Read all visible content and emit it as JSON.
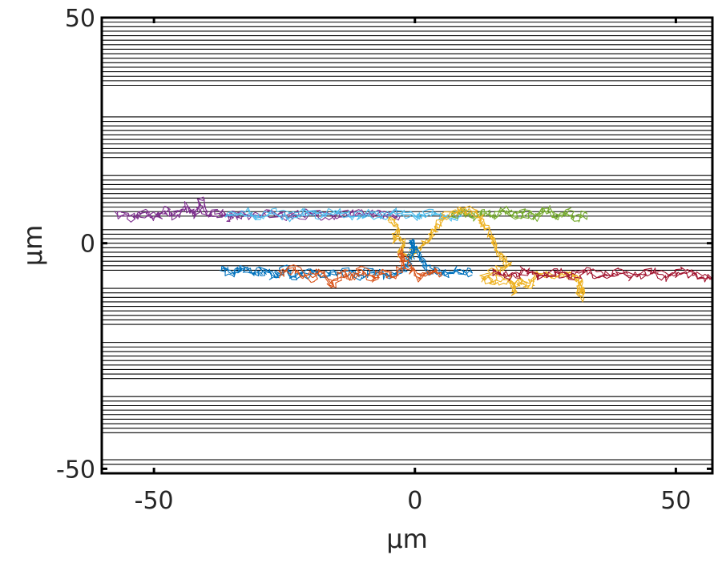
{
  "chart_data": {
    "type": "line",
    "title": "",
    "xlabel": "μm",
    "ylabel": "μm",
    "xlim": [
      -60,
      57
    ],
    "ylim": [
      -51,
      50
    ],
    "xticks": [
      -50,
      0,
      50
    ],
    "yticks": [
      -50,
      0,
      50
    ],
    "grid": false,
    "legend": "none",
    "horizontal_lines_y": [
      49,
      48,
      47,
      46,
      45,
      44,
      43,
      42,
      41,
      40,
      39,
      38,
      37,
      36,
      35,
      28,
      27,
      26,
      25,
      24,
      23,
      22,
      21,
      20,
      19,
      15,
      14,
      13,
      12,
      11,
      10,
      9,
      8,
      7,
      6,
      3,
      2,
      1,
      0,
      -1,
      -2,
      -3,
      -4,
      -5,
      -6,
      -10,
      -11,
      -12,
      -13,
      -14,
      -15,
      -16,
      -17,
      -18,
      -22,
      -23,
      -24,
      -25,
      -26,
      -27,
      -28,
      -29,
      -30,
      -34,
      -35,
      -36,
      -37,
      -38,
      -39,
      -40,
      -41,
      -42,
      -48,
      -49
    ],
    "series": [
      {
        "color": "#7E2F8E",
        "points": [
          [
            -57,
            6.5
          ],
          [
            -54,
            5.8
          ],
          [
            -52,
            6.6
          ],
          [
            -50,
            5.9
          ],
          [
            -48,
            7.2
          ],
          [
            -46,
            6.1
          ],
          [
            -44,
            8.2
          ],
          [
            -42,
            6.3
          ],
          [
            -41,
            9.6
          ],
          [
            -40,
            6.2
          ],
          [
            -38,
            6.8
          ],
          [
            -36,
            5.9
          ],
          [
            -34,
            6.5
          ],
          [
            -31,
            6.0
          ],
          [
            -28,
            6.7
          ],
          [
            -24,
            6.1
          ],
          [
            -20,
            6.6
          ],
          [
            -16,
            6.0
          ],
          [
            -12,
            6.7
          ],
          [
            -8,
            6.1
          ],
          [
            -5,
            6.5
          ],
          [
            -3,
            6.2
          ]
        ]
      },
      {
        "color": "#4DBEEE",
        "points": [
          [
            -36,
            6.2
          ],
          [
            -33,
            6.9
          ],
          [
            -30,
            5.8
          ],
          [
            -27,
            6.8
          ],
          [
            -24,
            5.9
          ],
          [
            -21,
            7.0
          ],
          [
            -18,
            6.0
          ],
          [
            -15,
            6.9
          ],
          [
            -12,
            5.8
          ],
          [
            -9,
            6.6
          ],
          [
            -6,
            6.1
          ],
          [
            -3,
            6.8
          ],
          [
            0,
            6.0
          ],
          [
            3,
            6.7
          ],
          [
            6,
            5.8
          ],
          [
            9,
            6.4
          ]
        ]
      },
      {
        "color": "#77AC30",
        "points": [
          [
            7,
            6.0
          ],
          [
            9,
            6.8
          ],
          [
            11,
            5.7
          ],
          [
            13,
            7.0
          ],
          [
            15,
            5.9
          ],
          [
            17,
            7.3
          ],
          [
            19,
            5.8
          ],
          [
            21,
            6.9
          ],
          [
            23,
            5.8
          ],
          [
            25,
            7.6
          ],
          [
            27,
            5.9
          ],
          [
            29,
            6.9
          ],
          [
            31,
            5.6
          ],
          [
            33,
            6.5
          ]
        ]
      },
      {
        "color": "#EDB120",
        "points": [
          [
            -5,
            5.5
          ],
          [
            -3,
            3.5
          ],
          [
            -4,
            1.2
          ],
          [
            -2,
            0.0
          ],
          [
            -3,
            -2.0
          ],
          [
            -1,
            -3.2
          ],
          [
            1,
            -1.0
          ],
          [
            3,
            1.5
          ],
          [
            4,
            3.5
          ],
          [
            6,
            6.0
          ],
          [
            9,
            7.5
          ],
          [
            12,
            6.5
          ],
          [
            13,
            4.5
          ],
          [
            14,
            2.5
          ],
          [
            15,
            0.5
          ],
          [
            16,
            -2.5
          ],
          [
            18,
            -4.5
          ],
          [
            16,
            -6.0
          ],
          [
            13,
            -7.2
          ],
          [
            15,
            -8.5
          ],
          [
            18,
            -7.8
          ],
          [
            19,
            -10.5
          ],
          [
            20,
            -8.0
          ],
          [
            22,
            -9.5
          ],
          [
            23,
            -6.5
          ],
          [
            27,
            -7.4
          ],
          [
            30,
            -6.8
          ],
          [
            32,
            -9.0
          ],
          [
            32,
            -11.8
          ],
          [
            31,
            -9.5
          ]
        ]
      },
      {
        "color": "#0072BD",
        "points": [
          [
            -37,
            -5.5
          ],
          [
            -35,
            -6.8
          ],
          [
            -33,
            -5.2
          ],
          [
            -31,
            -7.0
          ],
          [
            -29,
            -6.0
          ],
          [
            -27,
            -7.4
          ],
          [
            -25,
            -5.9
          ],
          [
            -23,
            -7.6
          ],
          [
            -20,
            -6.4
          ],
          [
            -17,
            -7.1
          ],
          [
            -14,
            -6.2
          ],
          [
            -11,
            -7.3
          ],
          [
            -8,
            -6.3
          ],
          [
            -5,
            -7.2
          ],
          [
            -2,
            -6.0
          ],
          [
            -1,
            -3.5
          ],
          [
            0,
            -1.2
          ],
          [
            -1,
            0.8
          ],
          [
            1,
            -2.8
          ],
          [
            2,
            -5.6
          ],
          [
            5,
            -6.8
          ],
          [
            8,
            -5.8
          ],
          [
            11,
            -6.6
          ]
        ]
      },
      {
        "color": "#D95319",
        "points": [
          [
            -26,
            -6.8
          ],
          [
            -23,
            -5.9
          ],
          [
            -20,
            -7.6
          ],
          [
            -18,
            -6.3
          ],
          [
            -16,
            -9.6
          ],
          [
            -14,
            -6.5
          ],
          [
            -12,
            -7.6
          ],
          [
            -10,
            -6.0
          ],
          [
            -8,
            -7.9
          ],
          [
            -6,
            -6.2
          ],
          [
            -4,
            -7.4
          ],
          [
            -2,
            -4.5
          ],
          [
            -3,
            -2.0
          ],
          [
            -1,
            -5.5
          ],
          [
            1,
            -7.4
          ],
          [
            3,
            -6.2
          ],
          [
            5,
            -6.9
          ]
        ]
      },
      {
        "color": "#A2142F",
        "points": [
          [
            15,
            -6.5
          ],
          [
            18,
            -7.3
          ],
          [
            21,
            -6.2
          ],
          [
            24,
            -7.4
          ],
          [
            27,
            -6.4
          ],
          [
            30,
            -7.5
          ],
          [
            33,
            -6.2
          ],
          [
            36,
            -7.6
          ],
          [
            39,
            -6.5
          ],
          [
            42,
            -7.3
          ],
          [
            45,
            -6.3
          ],
          [
            48,
            -7.4
          ],
          [
            51,
            -6.2
          ],
          [
            54,
            -7.1
          ],
          [
            57,
            -7.8
          ]
        ]
      }
    ]
  }
}
